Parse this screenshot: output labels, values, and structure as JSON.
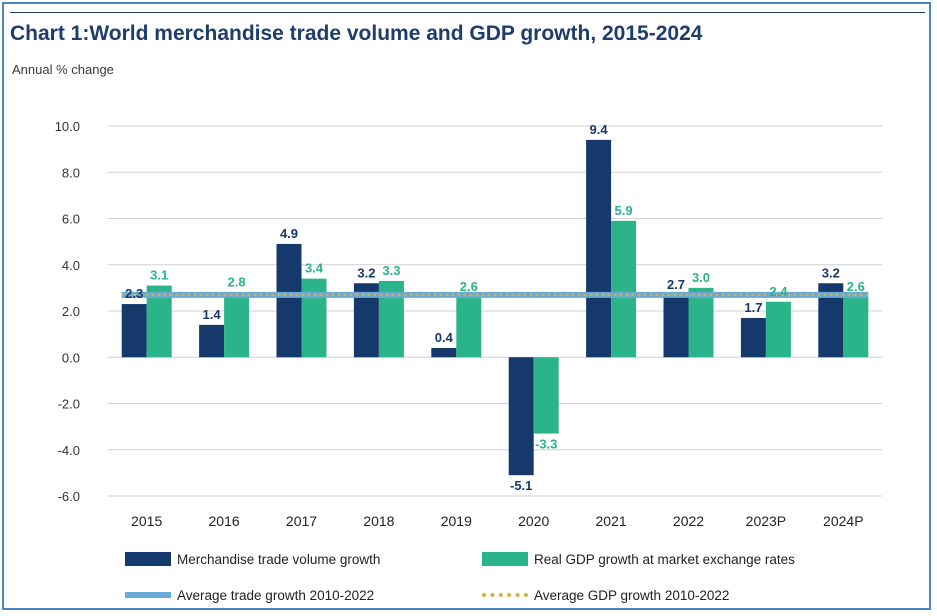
{
  "header": {
    "title": "Chart 1:World merchandise trade volume and GDP growth, 2015-2024",
    "subtitle": "Annual % change"
  },
  "colors": {
    "trade": "#15396b",
    "gdp": "#2bb38a",
    "avg_trade": "#6aa9d8",
    "avg_gdp": "#d4b23a",
    "grid": "#d0d0d0",
    "frame": "#4a86c5"
  },
  "legend": {
    "trade": "Merchandise trade volume growth",
    "gdp": "Real GDP growth at market exchange rates",
    "avg_trade": "Average trade growth 2010-2022",
    "avg_gdp": "Average GDP growth 2010-2022"
  },
  "chart_data": {
    "type": "bar",
    "categories": [
      "2015",
      "2016",
      "2017",
      "2018",
      "2019",
      "2020",
      "2021",
      "2022",
      "2023P",
      "2024P"
    ],
    "series": [
      {
        "name": "Merchandise trade volume growth",
        "values": [
          2.3,
          1.4,
          4.9,
          3.2,
          0.4,
          -5.1,
          9.4,
          2.7,
          1.7,
          3.2
        ],
        "labels": [
          "2.3",
          "1.4",
          "4.9",
          "3.2",
          "0.4",
          "-5.1",
          "9.4",
          "2.7",
          "1.7",
          "3.2"
        ]
      },
      {
        "name": "Real GDP growth at market exchange rates",
        "values": [
          3.1,
          2.8,
          3.4,
          3.3,
          2.6,
          -3.3,
          5.9,
          3.0,
          2.4,
          2.6
        ],
        "labels": [
          "3.1",
          "2.8",
          "3.4",
          "3.3",
          "2.6",
          "-3.3",
          "5.9",
          "3.0",
          "2.4",
          "2.6"
        ]
      }
    ],
    "reference_lines": [
      {
        "name": "Average trade growth 2010-2022",
        "value": 2.7,
        "style": "solid"
      },
      {
        "name": "Average GDP growth 2010-2022",
        "value": 2.7,
        "style": "dotted"
      }
    ],
    "ylim": [
      -6.0,
      10.0
    ],
    "yticks": [
      -6.0,
      -4.0,
      -2.0,
      0.0,
      2.0,
      4.0,
      6.0,
      8.0,
      10.0
    ],
    "ytick_labels": [
      "-6.0",
      "-4.0",
      "-2.0",
      "0.0",
      "2.0",
      "4.0",
      "6.0",
      "8.0",
      "10.0"
    ],
    "ylabel": "Annual % change",
    "xlabel": "",
    "grid": true,
    "legend_position": "bottom"
  }
}
